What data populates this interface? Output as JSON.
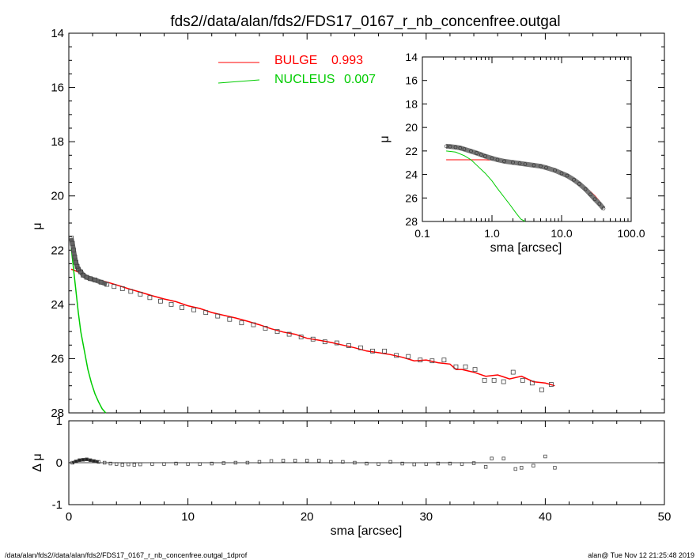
{
  "title": "fds2//data/alan/fds2/FDS17_0167_r_nb_concenfree.outgal",
  "footer": {
    "left": "/data/alan/fds2//data/alan/fds2/FDS17_0167_r_nb_concenfree.outgal_1dprof",
    "right": "alan@   Tue Nov 12 21:25:48 2019"
  },
  "legend": {
    "bulge": {
      "label": "BULGE",
      "value": "0.993",
      "color": "#ff0000"
    },
    "nucleus": {
      "label": "NUCLEUS",
      "value": "0.007",
      "color": "#00cc00"
    }
  },
  "colors": {
    "data": "#555555",
    "bulge": "#ff0000",
    "nucleus": "#00cc00",
    "total": "#000000"
  },
  "chart_data": [
    {
      "type": "scatter",
      "name": "main-profile",
      "xlabel": "",
      "ylabel": "μ",
      "xlim": [
        0,
        50
      ],
      "ylim": [
        28,
        14
      ],
      "y_inverted": true,
      "xticks": [
        "0",
        "10",
        "20",
        "30",
        "40",
        "50"
      ],
      "yticks": [
        "14",
        "16",
        "18",
        "20",
        "22",
        "24",
        "26",
        "28"
      ],
      "series": [
        {
          "name": "data",
          "x": [
            0.2,
            0.3,
            0.4,
            0.5,
            0.6,
            0.7,
            0.8,
            1.0,
            1.2,
            1.5,
            1.8,
            2.2,
            2.7,
            3.2,
            3.8,
            4.5,
            5.2,
            6.0,
            6.8,
            7.7,
            8.6,
            9.5,
            10.5,
            11.5,
            12.5,
            13.5,
            14.5,
            15.5,
            16.5,
            17.5,
            18.5,
            19.5,
            20.5,
            21.5,
            22.5,
            23.5,
            24.5,
            25.5,
            26.5,
            27.5,
            28.5,
            29.5,
            30.5,
            31.5,
            32.5,
            33.3,
            34.1,
            34.9,
            35.7,
            36.5,
            37.3,
            38.1,
            38.9,
            39.7,
            40.5
          ],
          "y": [
            21.55,
            21.75,
            22.0,
            22.25,
            22.45,
            22.6,
            22.7,
            22.8,
            22.92,
            23.0,
            23.05,
            23.1,
            23.18,
            23.26,
            23.34,
            23.42,
            23.52,
            23.62,
            23.75,
            23.88,
            24.0,
            24.12,
            24.2,
            24.3,
            24.43,
            24.55,
            24.68,
            24.75,
            24.88,
            25.0,
            25.1,
            25.2,
            25.28,
            25.38,
            25.42,
            25.52,
            25.6,
            25.72,
            25.72,
            25.88,
            25.92,
            26.05,
            26.08,
            26.05,
            26.3,
            26.3,
            26.4,
            26.8,
            26.8,
            26.85,
            26.5,
            26.8,
            26.9,
            27.15,
            26.95
          ]
        },
        {
          "name": "",
          "x": [
            0.2,
            0.5,
            1.0,
            1.5,
            2.0,
            3.0,
            4.0,
            5.0,
            6.0,
            7.0,
            8.0,
            9.0,
            10.0,
            11.0,
            12.0,
            13.0,
            14.0,
            15.0,
            16.0,
            17.0,
            18.0,
            19.0,
            20.0,
            21.0,
            22.0,
            23.0,
            24.0,
            25.0,
            26.0,
            27.0,
            28.0,
            29.0,
            30.0,
            31.0,
            32.0,
            32.5,
            33.0,
            33.5,
            34.0,
            35.0,
            36.0,
            37.0,
            38.0,
            39.0,
            40.0,
            40.8
          ],
          "y": [
            22.7,
            22.75,
            22.85,
            22.95,
            23.05,
            23.15,
            23.28,
            23.42,
            23.55,
            23.68,
            23.8,
            23.9,
            24.05,
            24.15,
            24.3,
            24.4,
            24.5,
            24.62,
            24.75,
            24.9,
            25.02,
            25.1,
            25.25,
            25.32,
            25.4,
            25.5,
            25.6,
            25.72,
            25.78,
            25.85,
            25.95,
            26.08,
            26.05,
            26.15,
            26.2,
            26.4,
            26.4,
            26.45,
            26.5,
            26.65,
            26.6,
            26.75,
            26.65,
            26.85,
            26.9,
            27.0
          ]
        },
        {
          "name": "",
          "x": [
            0.2,
            0.4,
            0.6,
            0.8,
            1.0,
            1.3,
            1.6,
            1.9,
            2.2,
            2.5,
            2.8,
            3.1
          ],
          "y": [
            21.9,
            22.7,
            23.5,
            24.3,
            25.0,
            25.7,
            26.4,
            26.9,
            27.3,
            27.6,
            27.85,
            28.0
          ]
        }
      ]
    },
    {
      "type": "scatter",
      "name": "residuals",
      "xlabel": "sma [arcsec]",
      "ylabel": "Δ μ",
      "xlim": [
        0,
        50
      ],
      "ylim": [
        -1,
        1
      ],
      "xticks": [
        "0",
        "10",
        "20",
        "30",
        "40",
        "50"
      ],
      "yticks": [
        "1",
        "0",
        "-1"
      ],
      "series": [
        {
          "name": "",
          "x": [
            0.3,
            0.6,
            0.9,
            1.2,
            1.5,
            1.8,
            2.1,
            2.5,
            3.0,
            3.5,
            4.0,
            4.5,
            5.0,
            5.5,
            6.0,
            7.0,
            8.0,
            9.0,
            10.0,
            11.0,
            12.0,
            13.0,
            14.0,
            15.0,
            16.0,
            17.0,
            18.0,
            19.0,
            20.0,
            21.0,
            22.0,
            23.0,
            24.0,
            25.0,
            26.0,
            27.0,
            28.0,
            29.0,
            30.0,
            31.0,
            32.0,
            33.0,
            34.0,
            35.0,
            35.5,
            36.5,
            37.5,
            38.0,
            39.0,
            40.0,
            40.8
          ],
          "y": [
            0.0,
            0.03,
            0.06,
            0.07,
            0.08,
            0.06,
            0.04,
            0.02,
            0.0,
            -0.02,
            -0.03,
            -0.05,
            -0.04,
            -0.05,
            -0.04,
            -0.03,
            -0.03,
            -0.02,
            -0.03,
            -0.03,
            -0.02,
            -0.01,
            0.0,
            0.0,
            0.02,
            0.04,
            0.05,
            0.05,
            0.05,
            0.05,
            0.02,
            0.02,
            0.0,
            -0.02,
            -0.03,
            0.02,
            -0.02,
            -0.04,
            -0.03,
            -0.02,
            -0.02,
            -0.03,
            -0.01,
            -0.1,
            0.1,
            0.1,
            -0.15,
            -0.12,
            -0.07,
            0.15,
            -0.12
          ]
        }
      ]
    },
    {
      "type": "scatter",
      "name": "inset-log-profile",
      "xlabel": "sma [arcsec]",
      "ylabel": "μ",
      "x_scale": "log",
      "xlim": [
        0.1,
        100
      ],
      "ylim": [
        28,
        14
      ],
      "y_inverted": true,
      "xticks": [
        "0.1",
        "1.0",
        "10.0",
        "100.0"
      ],
      "yticks": [
        "14",
        "16",
        "18",
        "20",
        "22",
        "24",
        "26",
        "28"
      ],
      "series": [
        {
          "name": "data",
          "x": [
            0.22,
            0.25,
            0.3,
            0.35,
            0.4,
            0.5,
            0.6,
            0.7,
            0.8,
            1.0,
            1.2,
            1.5,
            2.0,
            2.5,
            3.0,
            4.0,
            5.0,
            6.0,
            8.0,
            10.0,
            12.0,
            15.0,
            18.0,
            22.0,
            26.0,
            30.0,
            35.0,
            40.0
          ],
          "y": [
            21.6,
            21.62,
            21.68,
            21.75,
            21.85,
            22.02,
            22.18,
            22.32,
            22.45,
            22.62,
            22.75,
            22.88,
            22.98,
            23.05,
            23.12,
            23.22,
            23.3,
            23.42,
            23.65,
            23.9,
            24.1,
            24.45,
            24.8,
            25.25,
            25.7,
            26.1,
            26.5,
            26.9
          ]
        },
        {
          "name": "",
          "x": [
            0.22,
            0.3,
            0.5,
            0.8,
            1.0,
            1.5,
            2.0,
            3.0,
            5.0,
            8.0,
            10.0,
            15.0,
            20.0,
            25.0,
            30.0,
            35.0,
            40.0
          ],
          "y": [
            22.75,
            22.75,
            22.75,
            22.75,
            22.78,
            22.85,
            22.95,
            23.1,
            23.32,
            23.6,
            23.85,
            24.4,
            24.95,
            25.35,
            25.8,
            26.25,
            26.75
          ]
        },
        {
          "name": "",
          "x": [
            0.22,
            0.3,
            0.4,
            0.5,
            0.6,
            0.8,
            1.0,
            1.2,
            1.5,
            1.8,
            2.2,
            2.6,
            3.0
          ],
          "y": [
            22.0,
            22.1,
            22.4,
            22.75,
            23.2,
            23.9,
            24.55,
            25.2,
            25.95,
            26.55,
            27.25,
            27.8,
            28.1
          ]
        }
      ]
    }
  ]
}
